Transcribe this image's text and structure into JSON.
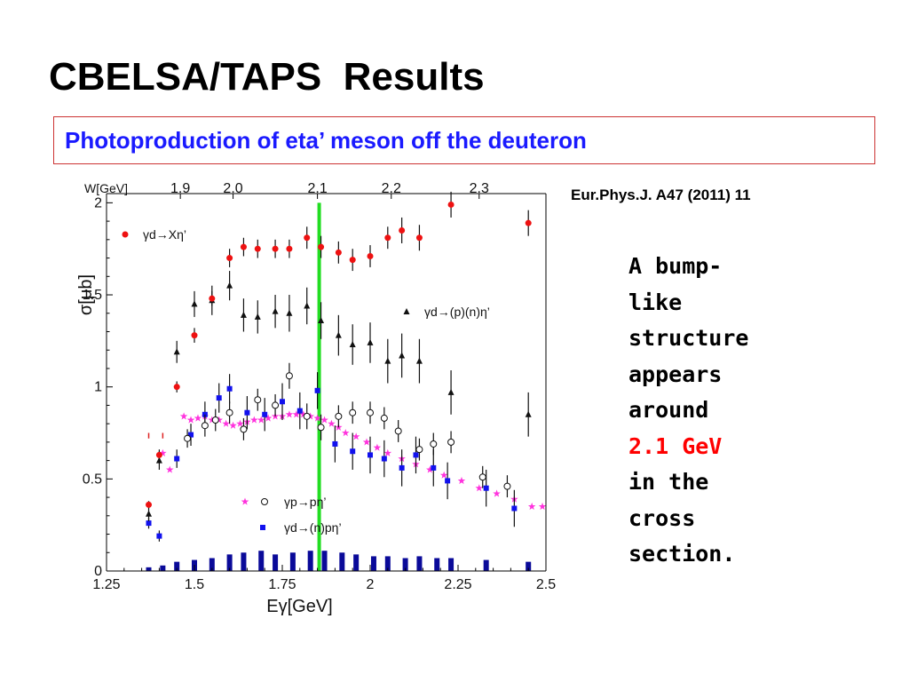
{
  "slide": {
    "title": "CBELSA/TAPS  Results",
    "subtitle": "Photoproduction of eta’ meson off the deuteron",
    "citation": "Eur.Phys.J. A47 (2011) 11",
    "note": {
      "lines": [
        "A bump-",
        "like",
        "structure",
        "appears",
        "around"
      ],
      "highlight": "2.1 GeV",
      "lines_after": [
        "in the",
        "cross",
        "section."
      ],
      "highlight_color": "#ff0000"
    }
  },
  "chart_data": {
    "type": "scatter",
    "xlabel": "Eγ[GeV]",
    "ylabel": "σ[μb]",
    "top_axis_label": "W[GeV]",
    "xlim": [
      1.25,
      2.5
    ],
    "ylim": [
      0,
      2.05
    ],
    "x_ticks": [
      "1.25",
      "1.5",
      "1.75",
      "2",
      "2.25",
      "2.5"
    ],
    "y_ticks": [
      "0",
      "0.5",
      "1",
      "1.5",
      "2"
    ],
    "top_ticks": [
      {
        "label": "1.9",
        "e": 1.46
      },
      {
        "label": "2.0",
        "e": 1.61
      },
      {
        "label": "2.1",
        "e": 1.85
      },
      {
        "label": "2.2",
        "e": 2.06
      },
      {
        "label": "2.3",
        "e": 2.31
      }
    ],
    "vertical_line": {
      "x": 1.855,
      "color": "#22dd22"
    },
    "series": [
      {
        "name": "γd→Xη’",
        "marker": "circle-filled",
        "color": "#ee1111",
        "legend": "top-left",
        "points": [
          [
            1.37,
            0.36,
            0.02
          ],
          [
            1.4,
            0.63,
            0.03
          ],
          [
            1.45,
            1.0,
            0.03
          ],
          [
            1.5,
            1.28,
            0.04
          ],
          [
            1.55,
            1.48,
            0.04
          ],
          [
            1.6,
            1.7,
            0.05
          ],
          [
            1.64,
            1.76,
            0.05
          ],
          [
            1.68,
            1.75,
            0.05
          ],
          [
            1.73,
            1.75,
            0.05
          ],
          [
            1.77,
            1.75,
            0.05
          ],
          [
            1.82,
            1.81,
            0.06
          ],
          [
            1.86,
            1.76,
            0.06
          ],
          [
            1.91,
            1.73,
            0.06
          ],
          [
            1.95,
            1.69,
            0.06
          ],
          [
            2.0,
            1.71,
            0.06
          ],
          [
            2.05,
            1.81,
            0.06
          ],
          [
            2.09,
            1.85,
            0.07
          ],
          [
            2.14,
            1.81,
            0.07
          ],
          [
            2.23,
            1.99,
            0.07
          ],
          [
            2.45,
            1.89,
            0.07
          ]
        ]
      },
      {
        "name": "γd→(p)(n)η’",
        "marker": "triangle-filled",
        "color": "#111111",
        "legend": "right",
        "points": [
          [
            1.37,
            0.31,
            0.04
          ],
          [
            1.4,
            0.6,
            0.05
          ],
          [
            1.45,
            1.19,
            0.06
          ],
          [
            1.5,
            1.45,
            0.07
          ],
          [
            1.55,
            1.47,
            0.08
          ],
          [
            1.6,
            1.55,
            0.08
          ],
          [
            1.64,
            1.39,
            0.09
          ],
          [
            1.68,
            1.38,
            0.09
          ],
          [
            1.73,
            1.41,
            0.09
          ],
          [
            1.77,
            1.4,
            0.1
          ],
          [
            1.82,
            1.44,
            0.1
          ],
          [
            1.86,
            1.36,
            0.1
          ],
          [
            1.91,
            1.28,
            0.11
          ],
          [
            1.95,
            1.23,
            0.11
          ],
          [
            2.0,
            1.24,
            0.11
          ],
          [
            2.05,
            1.14,
            0.12
          ],
          [
            2.09,
            1.17,
            0.12
          ],
          [
            2.14,
            1.14,
            0.12
          ],
          [
            2.23,
            0.97,
            0.12
          ],
          [
            2.45,
            0.85,
            0.12
          ]
        ]
      },
      {
        "name": "γp→pη’",
        "marker": "star",
        "color": "#ff33dd",
        "legend": "bottom",
        "points": [
          [
            1.41,
            0.64
          ],
          [
            1.43,
            0.55
          ],
          [
            1.47,
            0.84
          ],
          [
            1.49,
            0.82
          ],
          [
            1.51,
            0.83
          ],
          [
            1.53,
            0.84
          ],
          [
            1.55,
            0.82
          ],
          [
            1.57,
            0.82
          ],
          [
            1.59,
            0.8
          ],
          [
            1.61,
            0.79
          ],
          [
            1.63,
            0.8
          ],
          [
            1.65,
            0.81
          ],
          [
            1.67,
            0.82
          ],
          [
            1.69,
            0.82
          ],
          [
            1.71,
            0.83
          ],
          [
            1.73,
            0.84
          ],
          [
            1.75,
            0.84
          ],
          [
            1.77,
            0.85
          ],
          [
            1.79,
            0.85
          ],
          [
            1.81,
            0.85
          ],
          [
            1.83,
            0.84
          ],
          [
            1.85,
            0.83
          ],
          [
            1.87,
            0.82
          ],
          [
            1.89,
            0.8
          ],
          [
            1.91,
            0.78
          ],
          [
            1.93,
            0.75
          ],
          [
            1.96,
            0.73
          ],
          [
            1.99,
            0.7
          ],
          [
            2.02,
            0.67
          ],
          [
            2.05,
            0.64
          ],
          [
            2.09,
            0.61
          ],
          [
            2.13,
            0.58
          ],
          [
            2.17,
            0.55
          ],
          [
            2.21,
            0.52
          ],
          [
            2.26,
            0.49
          ],
          [
            2.31,
            0.45
          ],
          [
            2.36,
            0.42
          ],
          [
            2.41,
            0.39
          ],
          [
            2.46,
            0.35
          ],
          [
            2.49,
            0.35
          ]
        ]
      },
      {
        "name": "γp→pη’",
        "marker": "circle-open",
        "color": "#111111",
        "legend": "bottom",
        "points": [
          [
            1.48,
            0.72,
            0.05
          ],
          [
            1.53,
            0.79,
            0.06
          ],
          [
            1.56,
            0.82,
            0.06
          ],
          [
            1.6,
            0.86,
            0.06
          ],
          [
            1.64,
            0.77,
            0.06
          ],
          [
            1.68,
            0.93,
            0.06
          ],
          [
            1.73,
            0.9,
            0.06
          ],
          [
            1.77,
            1.06,
            0.07
          ],
          [
            1.82,
            0.84,
            0.07
          ],
          [
            1.86,
            0.78,
            0.07
          ],
          [
            1.91,
            0.84,
            0.06
          ],
          [
            1.95,
            0.86,
            0.06
          ],
          [
            2.0,
            0.86,
            0.06
          ],
          [
            2.04,
            0.83,
            0.06
          ],
          [
            2.08,
            0.76,
            0.06
          ],
          [
            2.14,
            0.66,
            0.06
          ],
          [
            2.18,
            0.69,
            0.06
          ],
          [
            2.23,
            0.7,
            0.06
          ],
          [
            2.32,
            0.51,
            0.06
          ],
          [
            2.39,
            0.46,
            0.06
          ]
        ]
      },
      {
        "name": "γd→(n)pη’",
        "marker": "square-filled",
        "color": "#1111ee",
        "legend": "bottom",
        "points": [
          [
            1.37,
            0.26,
            0.03
          ],
          [
            1.4,
            0.19,
            0.03
          ],
          [
            1.45,
            0.61,
            0.05
          ],
          [
            1.49,
            0.74,
            0.06
          ],
          [
            1.53,
            0.85,
            0.07
          ],
          [
            1.57,
            0.94,
            0.08
          ],
          [
            1.6,
            0.99,
            0.08
          ],
          [
            1.65,
            0.86,
            0.09
          ],
          [
            1.7,
            0.85,
            0.09
          ],
          [
            1.75,
            0.92,
            0.1
          ],
          [
            1.8,
            0.87,
            0.1
          ],
          [
            1.85,
            0.98,
            0.1
          ],
          [
            1.9,
            0.69,
            0.1
          ],
          [
            1.95,
            0.65,
            0.1
          ],
          [
            2.0,
            0.63,
            0.1
          ],
          [
            2.04,
            0.61,
            0.1
          ],
          [
            2.09,
            0.56,
            0.1
          ],
          [
            2.13,
            0.63,
            0.1
          ],
          [
            2.18,
            0.56,
            0.1
          ],
          [
            2.22,
            0.49,
            0.1
          ],
          [
            2.33,
            0.45,
            0.1
          ],
          [
            2.41,
            0.34,
            0.1
          ]
        ]
      }
    ],
    "bars": {
      "color": "#0a0a99",
      "x": [
        1.37,
        1.41,
        1.45,
        1.5,
        1.55,
        1.6,
        1.64,
        1.69,
        1.73,
        1.78,
        1.83,
        1.87,
        1.92,
        1.96,
        2.01,
        2.05,
        2.1,
        2.14,
        2.19,
        2.23,
        2.33,
        2.45
      ],
      "values": [
        0.02,
        0.03,
        0.05,
        0.06,
        0.07,
        0.09,
        0.1,
        0.11,
        0.09,
        0.1,
        0.11,
        0.11,
        0.1,
        0.09,
        0.08,
        0.08,
        0.07,
        0.08,
        0.07,
        0.07,
        0.06,
        0.05
      ]
    },
    "stray_marks_x": [
      1.37,
      1.41
    ]
  }
}
